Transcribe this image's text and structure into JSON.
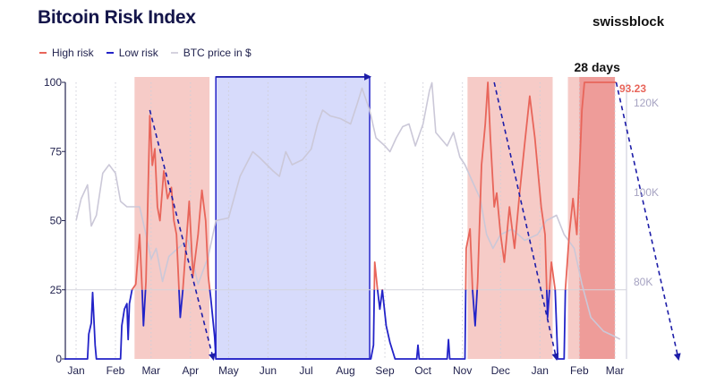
{
  "header": {
    "title": "Bitcoin Risk Index",
    "brand": "swissblock"
  },
  "colors": {
    "high_risk": "#e8655a",
    "low_risk": "#2323c8",
    "price": "#cbc8d8",
    "high_zone": "#f6cbc7",
    "high_zone_current": "#ee9c99",
    "low_zone": "#d7dbfb",
    "arrow": "#1d1da8"
  },
  "chart_data": {
    "type": "line",
    "title": "Bitcoin Risk Index",
    "legend": {
      "position": "top-left",
      "entries": [
        "High risk",
        "Low risk",
        "BTC price in $"
      ]
    },
    "x_range": [
      "2024-12-23",
      "2026-03-09"
    ],
    "x_ticks": [
      {
        "date": "2025-01-01",
        "label": "Jan"
      },
      {
        "date": "2025-02-01",
        "label": "Feb"
      },
      {
        "date": "2025-03-01",
        "label": "Mar"
      },
      {
        "date": "2025-04-01",
        "label": "Apr"
      },
      {
        "date": "2025-05-01",
        "label": "May"
      },
      {
        "date": "2025-06-01",
        "label": "Jun"
      },
      {
        "date": "2025-07-01",
        "label": "Jul"
      },
      {
        "date": "2025-08-01",
        "label": "Aug"
      },
      {
        "date": "2025-09-01",
        "label": "Sep"
      },
      {
        "date": "2025-10-01",
        "label": "Oct"
      },
      {
        "date": "2025-11-01",
        "label": "Nov"
      },
      {
        "date": "2025-12-01",
        "label": "Dec"
      },
      {
        "date": "2026-01-01",
        "label": "Jan"
      },
      {
        "date": "2026-02-01",
        "label": "Feb"
      },
      {
        "date": "2026-03-01",
        "label": "Mar"
      }
    ],
    "y_left": {
      "range": [
        0,
        100
      ],
      "ticks": [
        "0",
        "25",
        "50",
        "75",
        "100"
      ],
      "threshold": 25
    },
    "y_right": {
      "ticks": [
        {
          "value": 80,
          "label": "80K"
        },
        {
          "value": 100,
          "label": "100K"
        },
        {
          "value": 120,
          "label": "120K"
        }
      ]
    },
    "grid": "vertical dotted at month starts",
    "risk_threshold_colors": "High risk above 25, Low risk below 25",
    "risk_series": [
      [
        "2024-12-23",
        0
      ],
      [
        "2025-01-10",
        0
      ],
      [
        "2025-01-11",
        9
      ],
      [
        "2025-01-13",
        13
      ],
      [
        "2025-01-14",
        24
      ],
      [
        "2025-01-16",
        5
      ],
      [
        "2025-01-17",
        0
      ],
      [
        "2025-02-05",
        0
      ],
      [
        "2025-02-06",
        12
      ],
      [
        "2025-02-08",
        18
      ],
      [
        "2025-02-10",
        20
      ],
      [
        "2025-02-11",
        7
      ],
      [
        "2025-02-12",
        20
      ],
      [
        "2025-02-14",
        25
      ],
      [
        "2025-02-17",
        27
      ],
      [
        "2025-02-20",
        45
      ],
      [
        "2025-02-22",
        25
      ],
      [
        "2025-02-23",
        12
      ],
      [
        "2025-02-25",
        28
      ],
      [
        "2025-02-28",
        88
      ],
      [
        "2025-03-02",
        70
      ],
      [
        "2025-03-04",
        76
      ],
      [
        "2025-03-06",
        55
      ],
      [
        "2025-03-08",
        50
      ],
      [
        "2025-03-11",
        68
      ],
      [
        "2025-03-14",
        58
      ],
      [
        "2025-03-17",
        62
      ],
      [
        "2025-03-19",
        50
      ],
      [
        "2025-03-21",
        45
      ],
      [
        "2025-03-23",
        25
      ],
      [
        "2025-03-24",
        15
      ],
      [
        "2025-03-26",
        25
      ],
      [
        "2025-03-31",
        57
      ],
      [
        "2025-04-03",
        30
      ],
      [
        "2025-04-07",
        45
      ],
      [
        "2025-04-10",
        61
      ],
      [
        "2025-04-13",
        50
      ],
      [
        "2025-04-15",
        30
      ],
      [
        "2025-04-17",
        22
      ],
      [
        "2025-04-20",
        8
      ],
      [
        "2025-04-21",
        0
      ],
      [
        "2025-08-21",
        0
      ],
      [
        "2025-08-23",
        5
      ],
      [
        "2025-08-24",
        35
      ],
      [
        "2025-08-26",
        26
      ],
      [
        "2025-08-28",
        18
      ],
      [
        "2025-08-30",
        25
      ],
      [
        "2025-09-02",
        12
      ],
      [
        "2025-09-05",
        6
      ],
      [
        "2025-09-09",
        0
      ],
      [
        "2025-09-26",
        0
      ],
      [
        "2025-09-27",
        5
      ],
      [
        "2025-09-28",
        0
      ],
      [
        "2025-10-20",
        0
      ],
      [
        "2025-10-21",
        7
      ],
      [
        "2025-10-22",
        0
      ],
      [
        "2025-11-03",
        0
      ],
      [
        "2025-11-04",
        40
      ],
      [
        "2025-11-07",
        47
      ],
      [
        "2025-11-09",
        25
      ],
      [
        "2025-11-11",
        12
      ],
      [
        "2025-11-13",
        28
      ],
      [
        "2025-11-16",
        70
      ],
      [
        "2025-11-19",
        85
      ],
      [
        "2025-11-21",
        100
      ],
      [
        "2025-11-23",
        80
      ],
      [
        "2025-11-26",
        55
      ],
      [
        "2025-11-28",
        60
      ],
      [
        "2025-12-01",
        45
      ],
      [
        "2025-12-04",
        35
      ],
      [
        "2025-12-08",
        55
      ],
      [
        "2025-12-12",
        40
      ],
      [
        "2025-12-16",
        60
      ],
      [
        "2025-12-20",
        78
      ],
      [
        "2025-12-24",
        95
      ],
      [
        "2025-12-28",
        80
      ],
      [
        "2026-01-02",
        55
      ],
      [
        "2026-01-05",
        45
      ],
      [
        "2026-01-07",
        15
      ],
      [
        "2026-01-10",
        35
      ],
      [
        "2026-01-13",
        25
      ],
      [
        "2026-01-15",
        0
      ],
      [
        "2026-01-20",
        0
      ],
      [
        "2026-01-21",
        25
      ],
      [
        "2026-01-24",
        45
      ],
      [
        "2026-01-27",
        58
      ],
      [
        "2026-01-30",
        45
      ],
      [
        "2026-02-03",
        90
      ],
      [
        "2026-02-05",
        100
      ],
      [
        "2026-03-02",
        100
      ]
    ],
    "price_series_k": [
      [
        "2025-01-01",
        93.7
      ],
      [
        "2025-01-05",
        98.6
      ],
      [
        "2025-01-10",
        101.7
      ],
      [
        "2025-01-13",
        92.5
      ],
      [
        "2025-01-17",
        94.9
      ],
      [
        "2025-01-22",
        104.3
      ],
      [
        "2025-01-27",
        106.2
      ],
      [
        "2025-02-01",
        104.3
      ],
      [
        "2025-02-05",
        98.0
      ],
      [
        "2025-02-10",
        96.8
      ],
      [
        "2025-02-20",
        96.8
      ],
      [
        "2025-02-25",
        90.6
      ],
      [
        "2025-03-01",
        85.1
      ],
      [
        "2025-03-05",
        87.5
      ],
      [
        "2025-03-10",
        80.1
      ],
      [
        "2025-03-15",
        85.7
      ],
      [
        "2025-03-22",
        87.5
      ],
      [
        "2025-03-30",
        89.3
      ],
      [
        "2025-04-07",
        79.5
      ],
      [
        "2025-04-15",
        85.7
      ],
      [
        "2025-04-21",
        93.7
      ],
      [
        "2025-05-01",
        94.3
      ],
      [
        "2025-05-10",
        103.6
      ],
      [
        "2025-05-20",
        109.1
      ],
      [
        "2025-05-25",
        107.9
      ],
      [
        "2025-06-05",
        104.8
      ],
      [
        "2025-06-10",
        103.6
      ],
      [
        "2025-06-15",
        109.1
      ],
      [
        "2025-06-20",
        106.2
      ],
      [
        "2025-06-28",
        107.3
      ],
      [
        "2025-07-05",
        109.7
      ],
      [
        "2025-07-10",
        115.3
      ],
      [
        "2025-07-14",
        118.4
      ],
      [
        "2025-07-20",
        117.1
      ],
      [
        "2025-07-28",
        116.5
      ],
      [
        "2025-08-05",
        115.3
      ],
      [
        "2025-08-10",
        119.6
      ],
      [
        "2025-08-14",
        123.3
      ],
      [
        "2025-08-20",
        118.4
      ],
      [
        "2025-08-25",
        112.2
      ],
      [
        "2025-09-01",
        110.4
      ],
      [
        "2025-09-05",
        109.1
      ],
      [
        "2025-09-10",
        112.2
      ],
      [
        "2025-09-15",
        114.7
      ],
      [
        "2025-09-20",
        115.3
      ],
      [
        "2025-09-25",
        110.4
      ],
      [
        "2025-10-01",
        115.3
      ],
      [
        "2025-10-06",
        122.7
      ],
      [
        "2025-10-08",
        124.5
      ],
      [
        "2025-10-11",
        113.4
      ],
      [
        "2025-10-20",
        110.4
      ],
      [
        "2025-10-25",
        113.4
      ],
      [
        "2025-10-30",
        107.9
      ],
      [
        "2025-11-03",
        106.2
      ],
      [
        "2025-11-08",
        103.0
      ],
      [
        "2025-11-15",
        98.6
      ],
      [
        "2025-11-20",
        90.6
      ],
      [
        "2025-11-25",
        87.5
      ],
      [
        "2025-12-01",
        90.6
      ],
      [
        "2025-12-10",
        91.8
      ],
      [
        "2025-12-20",
        89.3
      ],
      [
        "2025-12-30",
        90.6
      ],
      [
        "2026-01-06",
        93.7
      ],
      [
        "2026-01-14",
        94.9
      ],
      [
        "2026-01-20",
        90.6
      ],
      [
        "2026-01-28",
        87.5
      ],
      [
        "2026-02-03",
        79.5
      ],
      [
        "2026-02-06",
        76.4
      ],
      [
        "2026-02-10",
        72.1
      ],
      [
        "2026-02-20",
        69.0
      ],
      [
        "2026-03-01",
        67.8
      ],
      [
        "2026-03-05",
        67.2
      ]
    ],
    "zones": [
      {
        "type": "high",
        "start": "2025-02-16",
        "end": "2025-04-16"
      },
      {
        "type": "low",
        "start": "2025-04-21",
        "end": "2025-08-20"
      },
      {
        "type": "high",
        "start": "2025-11-05",
        "end": "2026-01-11"
      },
      {
        "type": "high",
        "start": "2026-01-23",
        "end": "2026-03-01"
      },
      {
        "type": "high_current",
        "start": "2026-02-01",
        "end": "2026-03-01"
      }
    ],
    "arrows": [
      {
        "from": [
          "2025-02-28",
          90
        ],
        "to": [
          "2025-04-19",
          0
        ]
      },
      {
        "from": [
          "2025-04-21",
          102
        ],
        "to": [
          "2025-08-20",
          102
        ]
      },
      {
        "from": [
          "2025-11-26",
          100
        ],
        "to": [
          "2026-01-14",
          0
        ]
      },
      {
        "from": [
          "2026-03-02",
          100
        ],
        "to": [
          "2026-04-20",
          0
        ]
      }
    ],
    "annotations": {
      "duration_label": "28 days",
      "current_value": "93.23"
    }
  }
}
